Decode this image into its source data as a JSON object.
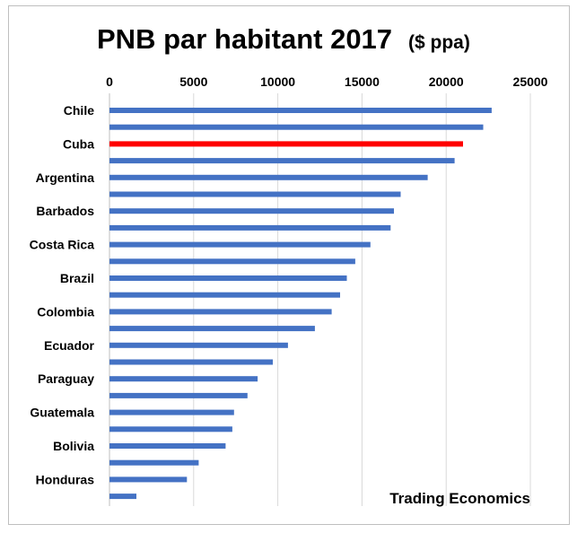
{
  "chart_data": {
    "type": "bar",
    "orientation": "horizontal",
    "title": "PNB par habitant 2017",
    "subtitle": "($ ppa)",
    "source": "Trading Economics",
    "xlim": [
      0,
      25000
    ],
    "xticks": [
      "0",
      "5000",
      "10000",
      "15000",
      "20000",
      "25000"
    ],
    "xtick_values": [
      0,
      5000,
      10000,
      15000,
      20000,
      25000
    ],
    "axis_position": "top",
    "grid": true,
    "bar_color": "#4472c4",
    "highlight_color": "#ff0000",
    "categories": [
      "Chile",
      "",
      "Cuba",
      "",
      "Argentina",
      "",
      "Barbados",
      "",
      "Costa Rica",
      "",
      "Brazil",
      "",
      "Colombia",
      "",
      "Ecuador",
      "",
      "Paraguay",
      "",
      "Guatemala",
      "",
      "Bolivia",
      "",
      "Honduras",
      ""
    ],
    "values": [
      22700,
      22200,
      21000,
      20500,
      18900,
      17300,
      16900,
      16700,
      15500,
      14600,
      14100,
      13700,
      13200,
      12200,
      10600,
      9700,
      8800,
      8200,
      7400,
      7300,
      6900,
      5300,
      4600,
      1600
    ],
    "highlight": [
      false,
      false,
      true,
      false,
      false,
      false,
      false,
      false,
      false,
      false,
      false,
      false,
      false,
      false,
      false,
      false,
      false,
      false,
      false,
      false,
      false,
      false,
      false,
      false
    ]
  }
}
